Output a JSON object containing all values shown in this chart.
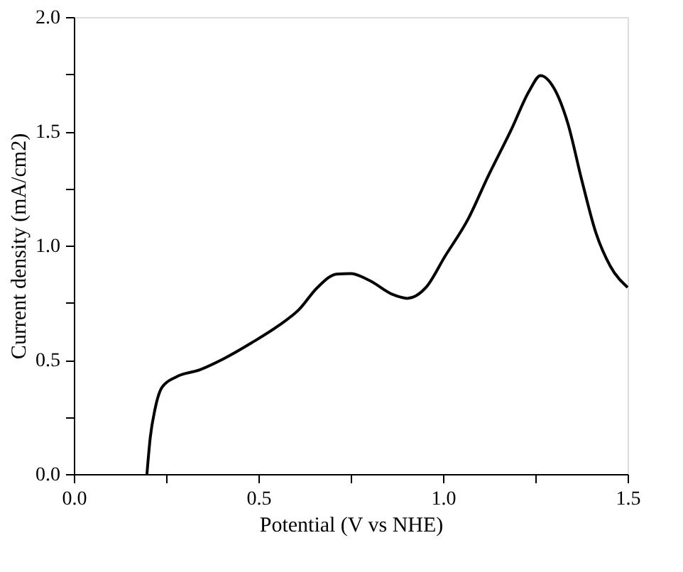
{
  "chart_data": {
    "type": "line",
    "xlabel": "Potential (V vs NHE)",
    "ylabel": "Current density (mA/cm2)",
    "x": [
      0.198,
      0.207,
      0.22,
      0.239,
      0.277,
      0.341,
      0.405,
      0.48,
      0.555,
      0.61,
      0.66,
      0.712,
      0.75,
      0.8,
      0.865,
      0.903,
      0.954,
      1.005,
      1.069,
      1.12,
      1.184,
      1.235,
      1.264,
      1.3,
      1.338,
      1.376,
      1.414,
      1.453,
      1.5
    ],
    "series": [
      {
        "color": "#000000",
        "values": [
          0,
          0.16,
          0.285,
          0.38,
          0.425,
          0.456,
          0.504,
          0.573,
          0.65,
          0.72,
          0.817,
          0.875,
          0.877,
          0.848,
          0.785,
          0.769,
          0.817,
          0.952,
          1.119,
          1.296,
          1.504,
          1.681,
          1.744,
          1.69,
          1.535,
          1.285,
          1.056,
          0.91,
          0.817
        ]
      }
    ],
    "xlim": [
      0,
      1.5
    ],
    "ylim": [
      0,
      2.0
    ],
    "xticks": [
      {
        "value": 0,
        "label": "0.0"
      },
      {
        "value": 0.25,
        "label": null
      },
      {
        "value": 0.5,
        "label": "0.5"
      },
      {
        "value": 0.75,
        "label": null
      },
      {
        "value": 1,
        "label": "1.0"
      },
      {
        "value": 1.25,
        "label": null
      },
      {
        "value": 1.5,
        "label": "1.5"
      }
    ],
    "yticks": [
      {
        "value": 0,
        "label": "0.0"
      },
      {
        "value": 0.25,
        "label": null
      },
      {
        "value": 0.5,
        "label": "0.5"
      },
      {
        "value": 0.75,
        "label": null
      },
      {
        "value": 1,
        "label": "1.0"
      },
      {
        "value": 1.25,
        "label": null
      },
      {
        "value": 1.5,
        "label": "1.5"
      },
      {
        "value": 1.75,
        "label": null
      },
      {
        "value": 2,
        "label": "2.0"
      }
    ],
    "grid": false,
    "marker": "none",
    "line_style": "solid"
  }
}
